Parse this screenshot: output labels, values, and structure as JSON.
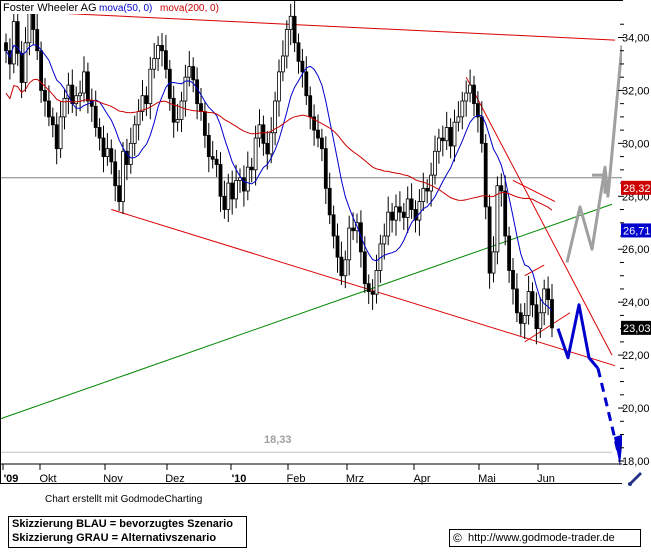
{
  "chart_data": {
    "type": "candlestick",
    "title": "Foster Wheeler AG",
    "indicators": [
      {
        "label": "mova(50, 0)",
        "color": "#0000cc"
      },
      {
        "label": "mova(200, 0)",
        "color": "#cc0000"
      }
    ],
    "x_ticks": [
      "'09",
      "Okt",
      "Nov",
      "Dez",
      "'10",
      "Feb",
      "Mrz",
      "Apr",
      "Mai",
      "Jun"
    ],
    "y_ticks": [
      "34,00",
      "32,00",
      "30,00",
      "28,00",
      "26,00",
      "24,00",
      "22,00",
      "20,00",
      "18,00"
    ],
    "ylim": [
      17.6,
      35.4
    ],
    "price_tags": [
      {
        "label": "28,32",
        "value": 28.32,
        "color": "#cc0000"
      },
      {
        "label": "26,71",
        "value": 26.71,
        "color": "#0000cc"
      },
      {
        "label": "23,03",
        "value": 23.03,
        "color": "#000000"
      }
    ],
    "low_annotation": "18,33",
    "horizontal_line": 28.7,
    "candles_close": [
      33.5,
      33.0,
      34.6,
      33.4,
      32.3,
      33.8,
      34.9,
      34.3,
      33.5,
      32.0,
      31.6,
      31.0,
      30.7,
      29.8,
      31.0,
      31.7,
      32.2,
      31.5,
      31.8,
      31.9,
      32.7,
      31.6,
      31.4,
      30.6,
      30.2,
      29.5,
      29.8,
      29.3,
      28.4,
      27.8,
      29.7,
      29.2,
      30.0,
      30.7,
      31.2,
      31.8,
      31.5,
      32.8,
      33.2,
      33.7,
      33.5,
      32.8,
      31.7,
      30.8,
      30.9,
      31.6,
      32.5,
      32.9,
      32.4,
      31.5,
      31.2,
      30.3,
      29.5,
      29.4,
      29.2,
      28.0,
      27.5,
      28.5,
      27.9,
      28.6,
      28.7,
      28.2,
      29.1,
      29.0,
      30.2,
      30.7,
      30.0,
      29.6,
      30.4,
      31.6,
      32.7,
      33.3,
      34.3,
      34.8,
      33.8,
      33.1,
      32.7,
      31.8,
      31.0,
      30.5,
      30.2,
      29.8,
      28.3,
      27.3,
      26.5,
      25.7,
      25.0,
      25.6,
      26.8,
      26.7,
      27.0,
      25.9,
      24.7,
      24.4,
      24.3,
      25.2,
      26.2,
      26.5,
      27.4,
      27.1,
      27.6,
      27.4,
      27.2,
      27.9,
      27.5,
      27.1,
      27.8,
      28.3,
      28.2,
      28.8,
      29.7,
      30.2,
      30.1,
      30.6,
      29.9,
      30.8,
      31.0,
      31.6,
      31.9,
      32.2,
      31.5,
      31.0,
      30.0,
      27.6,
      25.1,
      25.9,
      28.4,
      28.2,
      26.5,
      25.2,
      24.5,
      23.6,
      23.2,
      23.5,
      24.4,
      23.9,
      23.0,
      23.6,
      24.5,
      24.1,
      23.03
    ],
    "scenarios": [
      {
        "name": "Skizzierung BLAU = bevorzugtes Szenario",
        "color": "#0000cc"
      },
      {
        "name": "Skizzierung GRAU = Alternativszenario",
        "color": "#a0a0a0"
      }
    ]
  },
  "footer": {
    "credit": "Chart erstellt mit GodmodeCharting",
    "legend_blue": "Skizzierung BLAU = bevorzugtes Szenario",
    "legend_gray": "Skizzierung GRAU = Alternativszenario",
    "copyright": "©",
    "url": "http://www.godmode-trader.de"
  },
  "colors": {
    "candle": "#000000",
    "ma50": "#0000cc",
    "ma200": "#cc0000",
    "trend_red": "#dd0000",
    "trend_green": "#008800",
    "scenario_blue": "#0000cc",
    "scenario_gray": "#a0a0a0",
    "hline": "#808080"
  }
}
